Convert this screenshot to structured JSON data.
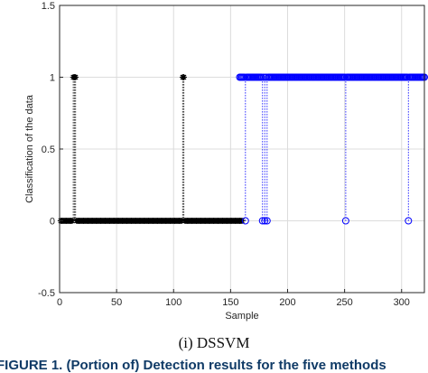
{
  "caption": "(i) DSSVM",
  "bottom_text": "FIGURE 1. (Portion of) Detection results for the five methods",
  "colors": {
    "series_class0": "#000000",
    "series_class1": "#0000ff",
    "grid": "#dcdcdc",
    "axis": "#262626"
  },
  "chart_data": {
    "type": "scatter",
    "xlabel": "Sample",
    "ylabel": "Classification of the data",
    "xlim": [
      0,
      320
    ],
    "ylim": [
      -0.5,
      1.5
    ],
    "xticks": [
      0,
      50,
      100,
      150,
      200,
      250,
      300
    ],
    "yticks": [
      -0.5,
      0,
      0.5,
      1,
      1.5
    ],
    "ytick_labels": [
      "-0.5",
      "0",
      "0.5",
      "1",
      "1.5"
    ],
    "grid": true,
    "stem": true,
    "series": [
      {
        "marker": "asterisk",
        "color": "#000000",
        "ones": [
          12,
          13,
          14,
          108,
          109
        ],
        "zeros_range": [
          1,
          160
        ]
      },
      {
        "marker": "circle",
        "color": "#0000ff",
        "zeros": [
          163,
          178,
          180,
          182,
          251,
          306
        ],
        "ones_range": [
          158,
          320
        ]
      }
    ]
  }
}
